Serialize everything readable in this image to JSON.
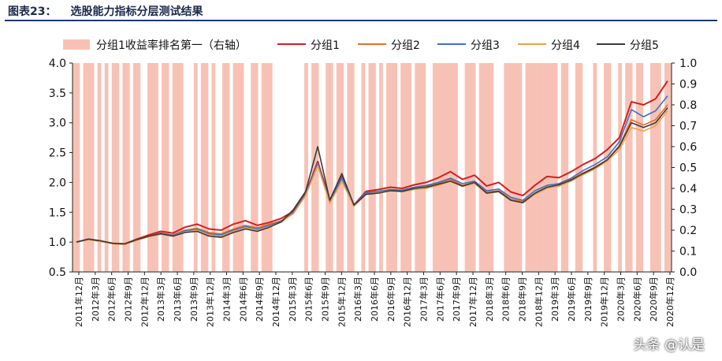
{
  "header": {
    "label": "图表23：",
    "title": "选股能力指标分层测试结果"
  },
  "watermark": "头条 @认是",
  "chart_data": {
    "type": "line",
    "title": "选股能力指标分层测试结果",
    "legend_position": "top",
    "legend": [
      "分组1收益率排名第一（右轴）",
      "分组1",
      "分组2",
      "分组3",
      "分组4",
      "分组5"
    ],
    "y_left": {
      "ticks": [
        "0.5",
        "1.0",
        "1.5",
        "2.0",
        "2.5",
        "3.0",
        "3.5",
        "4.0"
      ],
      "range": [
        0.5,
        4.0
      ]
    },
    "y_right": {
      "ticks": [
        "0.0",
        "0.1",
        "0.2",
        "0.3",
        "0.4",
        "0.5",
        "0.6",
        "0.7",
        "0.8",
        "0.9",
        "1.0"
      ],
      "range": [
        0,
        1.0
      ]
    },
    "x_ticks": [
      "2011年12月",
      "2012年3月",
      "2012年6月",
      "2012年9月",
      "2012年12月",
      "2013年3月",
      "2013年6月",
      "2013年9月",
      "2013年12月",
      "2014年3月",
      "2014年6月",
      "2014年9月",
      "2014年12月",
      "2015年3月",
      "2015年6月",
      "2015年9月",
      "2015年12月",
      "2016年3月",
      "2016年6月",
      "2016年9月",
      "2016年12月",
      "2017年3月",
      "2017年6月",
      "2017年9月",
      "2017年12月",
      "2018年3月",
      "2018年6月",
      "2018年9月",
      "2018年12月",
      "2019年3月",
      "2019年6月",
      "2019年9月",
      "2019年12月",
      "2020年3月",
      "2020年6月",
      "2020年9月",
      "2020年12月"
    ],
    "bars_series": {
      "name": "分组1收益率排名第一（右轴）",
      "color": "#f7c2b5",
      "values": [
        1,
        1,
        0,
        1,
        1,
        1,
        0,
        1,
        0,
        1,
        0,
        1,
        1,
        0,
        1,
        1,
        0,
        1,
        1,
        0,
        0,
        1,
        1,
        1,
        0,
        1,
        1,
        0,
        1,
        1,
        1,
        0,
        0,
        0,
        1,
        0,
        1,
        1,
        0,
        1,
        0,
        0,
        1,
        1,
        0,
        1,
        1,
        1,
        0,
        0,
        1,
        1,
        0,
        1,
        1,
        1,
        0,
        0,
        0,
        0,
        0,
        0,
        0,
        0,
        0,
        1,
        0,
        1,
        1,
        0,
        0,
        1,
        1,
        0,
        1,
        1,
        0,
        1,
        1,
        0,
        0,
        1,
        0,
        1,
        1,
        0,
        1,
        0,
        1,
        1,
        1,
        0,
        1,
        1,
        1,
        0,
        1,
        1,
        1,
        0,
        0,
        1,
        1,
        1,
        1,
        1,
        1,
        1,
        0,
        0,
        1,
        1,
        1,
        0,
        1,
        1,
        1,
        1,
        0,
        0,
        0,
        1,
        1,
        1,
        1,
        1,
        0,
        1,
        1,
        1,
        1,
        1,
        1,
        1,
        1,
        1,
        0,
        1,
        1,
        0,
        0,
        1,
        1,
        0,
        0,
        0,
        1,
        0,
        0,
        1,
        1,
        0,
        0,
        1,
        0,
        1,
        1,
        0,
        1,
        1,
        0,
        0,
        1,
        1,
        1,
        0,
        1,
        1
      ]
    },
    "series": [
      {
        "name": "分组1",
        "color": "#d21f1f",
        "values": [
          1.0,
          1.05,
          1.02,
          0.98,
          0.97,
          1.05,
          1.12,
          1.18,
          1.15,
          1.25,
          1.3,
          1.22,
          1.2,
          1.3,
          1.36,
          1.28,
          1.33,
          1.4,
          1.52,
          1.82,
          2.35,
          1.7,
          2.1,
          1.62,
          1.85,
          1.88,
          1.92,
          1.9,
          1.96,
          2.0,
          2.08,
          2.18,
          2.05,
          2.12,
          1.94,
          2.0,
          1.84,
          1.78,
          1.95,
          2.1,
          2.08,
          2.18,
          2.3,
          2.4,
          2.55,
          2.75,
          3.35,
          3.3,
          3.4,
          3.7
        ]
      },
      {
        "name": "分组2",
        "color": "#e46c2a",
        "values": [
          1.0,
          1.05,
          1.02,
          0.98,
          0.97,
          1.04,
          1.1,
          1.15,
          1.12,
          1.2,
          1.23,
          1.16,
          1.14,
          1.22,
          1.28,
          1.24,
          1.3,
          1.36,
          1.5,
          1.8,
          2.3,
          1.66,
          2.05,
          1.6,
          1.82,
          1.84,
          1.88,
          1.86,
          1.9,
          1.93,
          1.98,
          2.05,
          1.95,
          2.0,
          1.84,
          1.86,
          1.72,
          1.68,
          1.82,
          1.92,
          1.96,
          2.05,
          2.16,
          2.26,
          2.38,
          2.62,
          3.05,
          2.96,
          3.05,
          3.3
        ]
      },
      {
        "name": "分组3",
        "color": "#3f6fc4",
        "values": [
          1.0,
          1.05,
          1.02,
          0.98,
          0.97,
          1.04,
          1.1,
          1.15,
          1.11,
          1.19,
          1.22,
          1.14,
          1.12,
          1.2,
          1.26,
          1.22,
          1.28,
          1.35,
          1.5,
          1.8,
          2.32,
          1.68,
          2.08,
          1.62,
          1.83,
          1.85,
          1.88,
          1.87,
          1.92,
          1.95,
          2.0,
          2.07,
          1.98,
          2.02,
          1.86,
          1.89,
          1.75,
          1.7,
          1.86,
          1.95,
          1.98,
          2.07,
          2.2,
          2.3,
          2.43,
          2.68,
          3.22,
          3.1,
          3.2,
          3.45
        ]
      },
      {
        "name": "分组4",
        "color": "#f0a04b",
        "values": [
          1.0,
          1.04,
          1.01,
          0.97,
          0.96,
          1.03,
          1.09,
          1.13,
          1.1,
          1.17,
          1.2,
          1.12,
          1.1,
          1.18,
          1.24,
          1.2,
          1.26,
          1.34,
          1.48,
          1.78,
          2.28,
          1.65,
          2.02,
          1.6,
          1.8,
          1.83,
          1.86,
          1.84,
          1.88,
          1.9,
          1.95,
          2.02,
          1.93,
          1.98,
          1.82,
          1.84,
          1.7,
          1.66,
          1.8,
          1.9,
          1.94,
          2.02,
          2.13,
          2.23,
          2.36,
          2.55,
          2.92,
          2.86,
          2.95,
          3.2
        ]
      },
      {
        "name": "分组5",
        "color": "#3a3a3a",
        "values": [
          1.0,
          1.05,
          1.02,
          0.98,
          0.97,
          1.04,
          1.1,
          1.14,
          1.1,
          1.16,
          1.18,
          1.1,
          1.08,
          1.16,
          1.22,
          1.18,
          1.25,
          1.34,
          1.55,
          1.85,
          2.6,
          1.7,
          2.15,
          1.62,
          1.8,
          1.82,
          1.86,
          1.85,
          1.9,
          1.92,
          1.97,
          2.02,
          1.94,
          2.0,
          1.82,
          1.85,
          1.7,
          1.66,
          1.82,
          1.92,
          1.96,
          2.04,
          2.15,
          2.25,
          2.38,
          2.6,
          3.0,
          2.92,
          3.0,
          3.25
        ]
      }
    ]
  }
}
